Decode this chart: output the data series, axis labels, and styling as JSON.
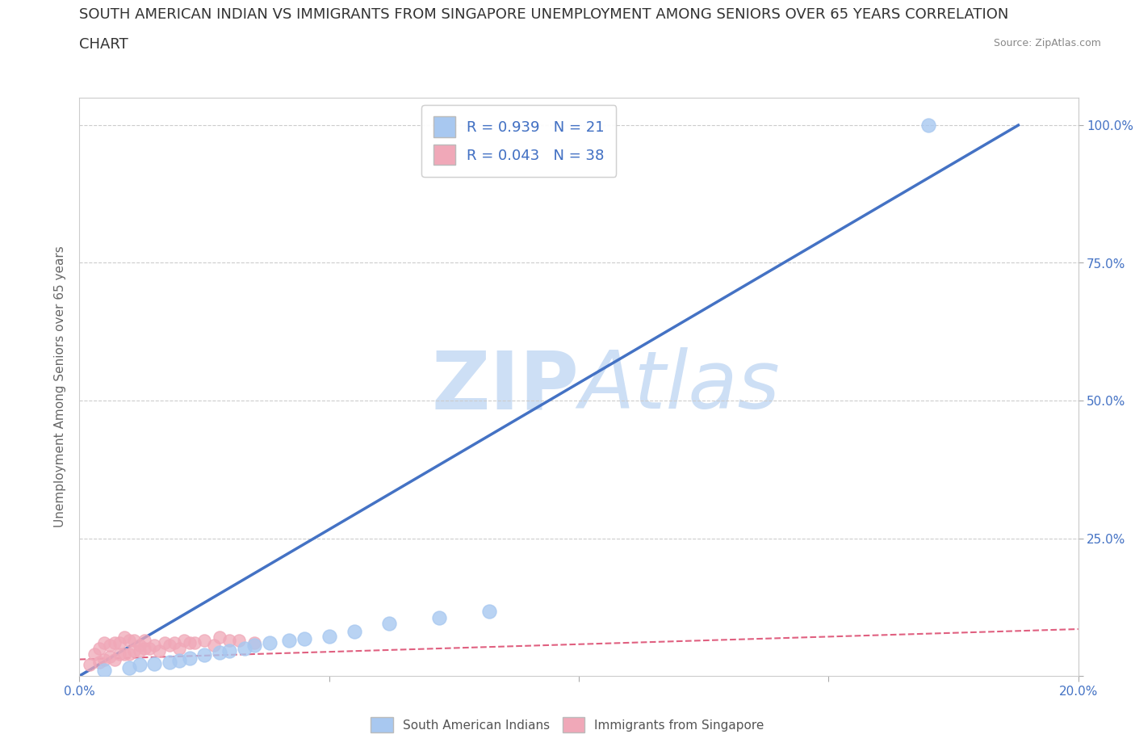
{
  "title_line1": "SOUTH AMERICAN INDIAN VS IMMIGRANTS FROM SINGAPORE UNEMPLOYMENT AMONG SENIORS OVER 65 YEARS CORRELATION",
  "title_line2": "CHART",
  "source": "Source: ZipAtlas.com",
  "ylabel": "Unemployment Among Seniors over 65 years",
  "xlim": [
    0.0,
    0.2
  ],
  "ylim": [
    0.0,
    1.05
  ],
  "ytick_positions": [
    0.0,
    0.25,
    0.5,
    0.75,
    1.0
  ],
  "ytick_labels": [
    "",
    "25.0%",
    "50.0%",
    "75.0%",
    "100.0%"
  ],
  "grid_color": "#cccccc",
  "background_color": "#ffffff",
  "watermark_text": "ZIPAtlas",
  "watermark_color": "#cddff5",
  "series": [
    {
      "name": "South American Indians",
      "R": 0.939,
      "N": 21,
      "color": "#a8c8f0",
      "line_color": "#4472c4",
      "x": [
        0.005,
        0.01,
        0.012,
        0.015,
        0.018,
        0.02,
        0.022,
        0.025,
        0.028,
        0.03,
        0.033,
        0.035,
        0.038,
        0.042,
        0.045,
        0.05,
        0.055,
        0.062,
        0.072,
        0.082,
        0.17
      ],
      "y": [
        0.01,
        0.015,
        0.02,
        0.022,
        0.025,
        0.028,
        0.032,
        0.038,
        0.042,
        0.045,
        0.05,
        0.055,
        0.06,
        0.065,
        0.068,
        0.072,
        0.08,
        0.095,
        0.105,
        0.118,
        1.0
      ],
      "trend_x": [
        0.0,
        0.188
      ],
      "trend_y": [
        0.0,
        1.0
      ]
    },
    {
      "name": "Immigrants from Singapore",
      "R": 0.043,
      "N": 38,
      "color": "#f0a8b8",
      "line_color": "#e06080",
      "line_style": "--",
      "x": [
        0.002,
        0.003,
        0.004,
        0.004,
        0.005,
        0.005,
        0.006,
        0.006,
        0.007,
        0.007,
        0.008,
        0.008,
        0.009,
        0.009,
        0.01,
        0.01,
        0.011,
        0.011,
        0.012,
        0.012,
        0.013,
        0.013,
        0.014,
        0.015,
        0.016,
        0.017,
        0.018,
        0.019,
        0.02,
        0.021,
        0.022,
        0.023,
        0.025,
        0.027,
        0.028,
        0.03,
        0.032,
        0.035
      ],
      "y": [
        0.02,
        0.04,
        0.025,
        0.05,
        0.03,
        0.06,
        0.035,
        0.055,
        0.03,
        0.06,
        0.04,
        0.06,
        0.04,
        0.07,
        0.04,
        0.065,
        0.045,
        0.065,
        0.045,
        0.055,
        0.05,
        0.065,
        0.05,
        0.055,
        0.045,
        0.06,
        0.055,
        0.06,
        0.05,
        0.065,
        0.06,
        0.06,
        0.065,
        0.055,
        0.07,
        0.065,
        0.065,
        0.06
      ],
      "trend_x": [
        0.0,
        0.2
      ],
      "trend_y": [
        0.03,
        0.085
      ]
    }
  ],
  "legend_R_color": "#4472c4",
  "title_fontsize": 13,
  "axis_label_fontsize": 11,
  "tick_fontsize": 11,
  "legend_fontsize": 13
}
